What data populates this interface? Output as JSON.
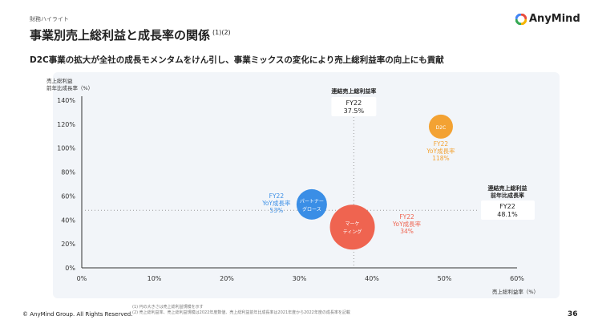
{
  "header": {
    "section": "財務ハイライト",
    "title": "事業別売上総利益と成長率の関係",
    "title_note": "(1)(2)",
    "logo": "AnyMind"
  },
  "subtitle": "D2C事業の拡大が全社の成長モメンタムをけん引し、事業ミックスの変化により売上総利益率の向上にも貢献",
  "colors": {
    "d2c": "#f3a233",
    "partner": "#3a8ee6",
    "marketing": "#ef6450",
    "panel": "#f2f5f9"
  },
  "chart_data": {
    "type": "bubble",
    "xlabel": "売上総利益率（%）",
    "ylabel": "売上総利益\n前年比成長率（%）",
    "xlim": [
      0,
      60
    ],
    "ylim": [
      0,
      140
    ],
    "xticks": [
      "0%",
      "10%",
      "20%",
      "30%",
      "40%",
      "50%",
      "60%"
    ],
    "yticks": [
      "0%",
      "20%",
      "40%",
      "60%",
      "80%",
      "100%",
      "120%",
      "140%"
    ],
    "series": [
      {
        "name": "D2C",
        "x": 49.5,
        "y": 118,
        "size": "small",
        "color": "#f3a233",
        "annotation": [
          "FY22",
          "YoY成長率",
          "118%"
        ]
      },
      {
        "name": "パートナーグロース",
        "label_lines": [
          "パートナー",
          "グロース"
        ],
        "x": 31.7,
        "y": 53,
        "size": "medium",
        "color": "#3a8ee6",
        "annotation": [
          "FY22",
          "YoY成長率",
          "53%"
        ]
      },
      {
        "name": "マーケティング",
        "label_lines": [
          "マーケ",
          "ティング"
        ],
        "x": 37.3,
        "y": 34,
        "size": "large",
        "color": "#ef6450",
        "annotation": [
          "FY22",
          "YoY成長率",
          "34%"
        ]
      }
    ],
    "reference_lines": [
      {
        "axis": "x",
        "value": 37.5,
        "title": "連結売上総利益率",
        "box": [
          "FY22",
          "37.5%"
        ]
      },
      {
        "axis": "y",
        "value": 48.1,
        "title": "連結売上総利益\n前年比成長率",
        "box": [
          "FY22",
          "48.1%"
        ]
      }
    ]
  },
  "footer": {
    "copyright": "© AnyMind Group. All Rights Reserved.",
    "note1": "(1) 円の大きさは売上総利益規模を示す",
    "note2": "(2) 売上総利益率、売上総利益規模は2022年度数値、売上総利益前年比成長率は2021年度から2022年度の成長率を記載",
    "page": "36"
  }
}
